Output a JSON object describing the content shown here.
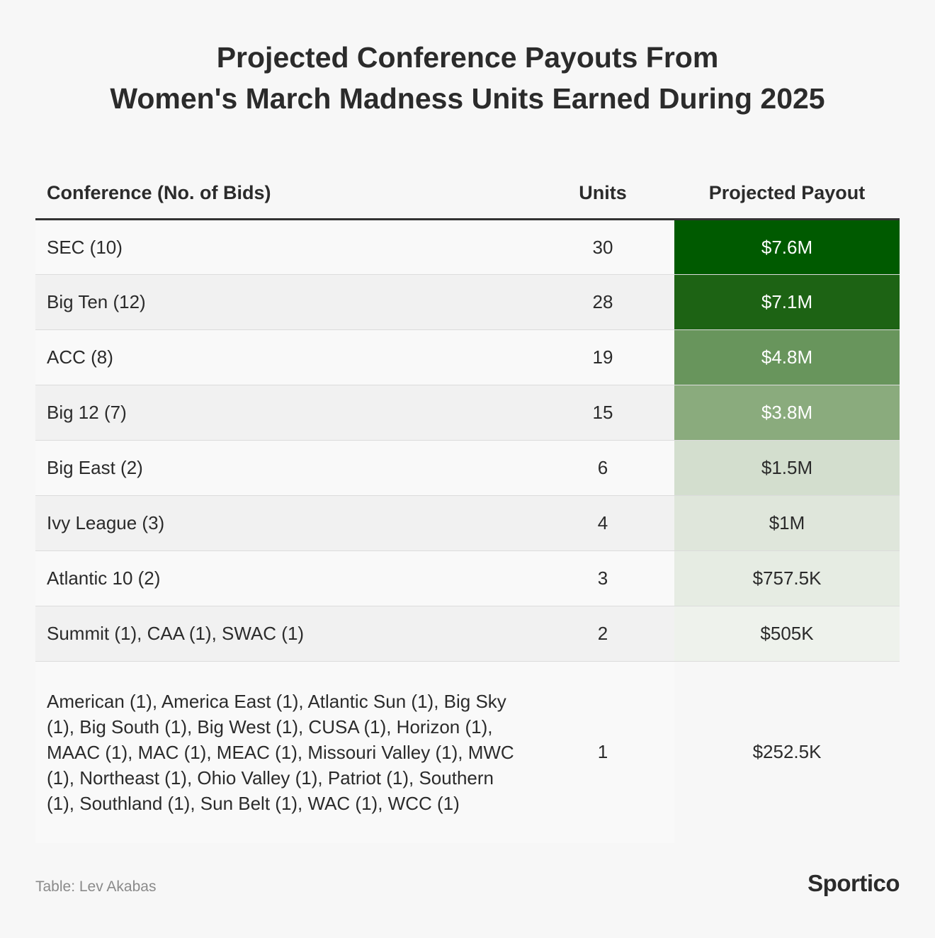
{
  "chart_data": {
    "type": "table",
    "title_lines": [
      "Projected Conference Payouts From",
      "Women's March Madness Units Earned During 2025"
    ],
    "columns": [
      "Conference (No. of Bids)",
      "Units",
      "Projected Payout"
    ],
    "rows": [
      {
        "conference": "SEC (10)",
        "units": "30",
        "payout": "$7.6M",
        "payout_value": 7600000,
        "color": "#005a00",
        "text_color": "#ffffff"
      },
      {
        "conference": "Big Ten (12)",
        "units": "28",
        "payout": "$7.1M",
        "payout_value": 7100000,
        "color": "#1d6314",
        "text_color": "#ffffff"
      },
      {
        "conference": "ACC (8)",
        "units": "19",
        "payout": "$4.8M",
        "payout_value": 4800000,
        "color": "#68955c",
        "text_color": "#ffffff"
      },
      {
        "conference": "Big 12 (7)",
        "units": "15",
        "payout": "$3.8M",
        "payout_value": 3800000,
        "color": "#8aab7d",
        "text_color": "#ffffff"
      },
      {
        "conference": "Big East (2)",
        "units": "6",
        "payout": "$1.5M",
        "payout_value": 1500000,
        "color": "#d3dece",
        "text_color": "#2b2b2b"
      },
      {
        "conference": "Ivy League (3)",
        "units": "4",
        "payout": "$1M",
        "payout_value": 1000000,
        "color": "#dfe6db",
        "text_color": "#2b2b2b"
      },
      {
        "conference": "Atlantic 10 (2)",
        "units": "3",
        "payout": "$757.5K",
        "payout_value": 757500,
        "color": "#e6ece3",
        "text_color": "#2b2b2b"
      },
      {
        "conference": "Summit (1), CAA (1), SWAC (1)",
        "units": "2",
        "payout": "$505K",
        "payout_value": 505000,
        "color": "#eef2ec",
        "text_color": "#2b2b2b"
      },
      {
        "conference": "American (1), America East (1), Atlantic Sun (1), Big Sky (1), Big South (1), Big West (1), CUSA (1), Horizon (1), MAAC (1), MAC (1), MEAC (1), Missouri Valley (1), MWC (1), Northeast (1), Ohio Valley (1), Patriot (1), Southern (1), Southland (1), Sun Belt (1), WAC (1), WCC (1)",
        "units": "1",
        "payout": "$252.5K",
        "payout_value": 252500,
        "color": "#f7f7f7",
        "text_color": "#2b2b2b"
      }
    ]
  },
  "footer": {
    "source": "Table: Lev Akabas",
    "logo": "Sportico"
  }
}
